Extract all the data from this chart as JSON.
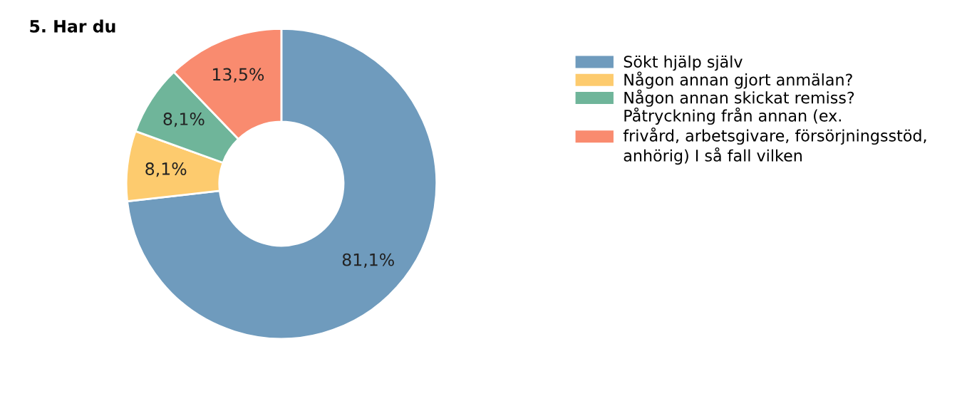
{
  "chart_data": {
    "type": "donut",
    "title": "5. Har du",
    "categories": [
      "Sökt hjälp själv",
      "Någon annan gjort anmälan?",
      "Någon annan skickat remiss?",
      "Påtryckning från annan (ex.\nfrivård, arbetsgivare, försörjningsstöd,\nanhörig) I så fall vilken"
    ],
    "values": [
      81.1,
      8.1,
      8.1,
      13.5
    ],
    "value_labels": [
      "81,1%",
      "8,1%",
      "8,1%",
      "13,5%"
    ],
    "colors": [
      "#6f9bbd",
      "#fdcb6e",
      "#6fb59a",
      "#f98b6f"
    ],
    "legend": "right"
  }
}
